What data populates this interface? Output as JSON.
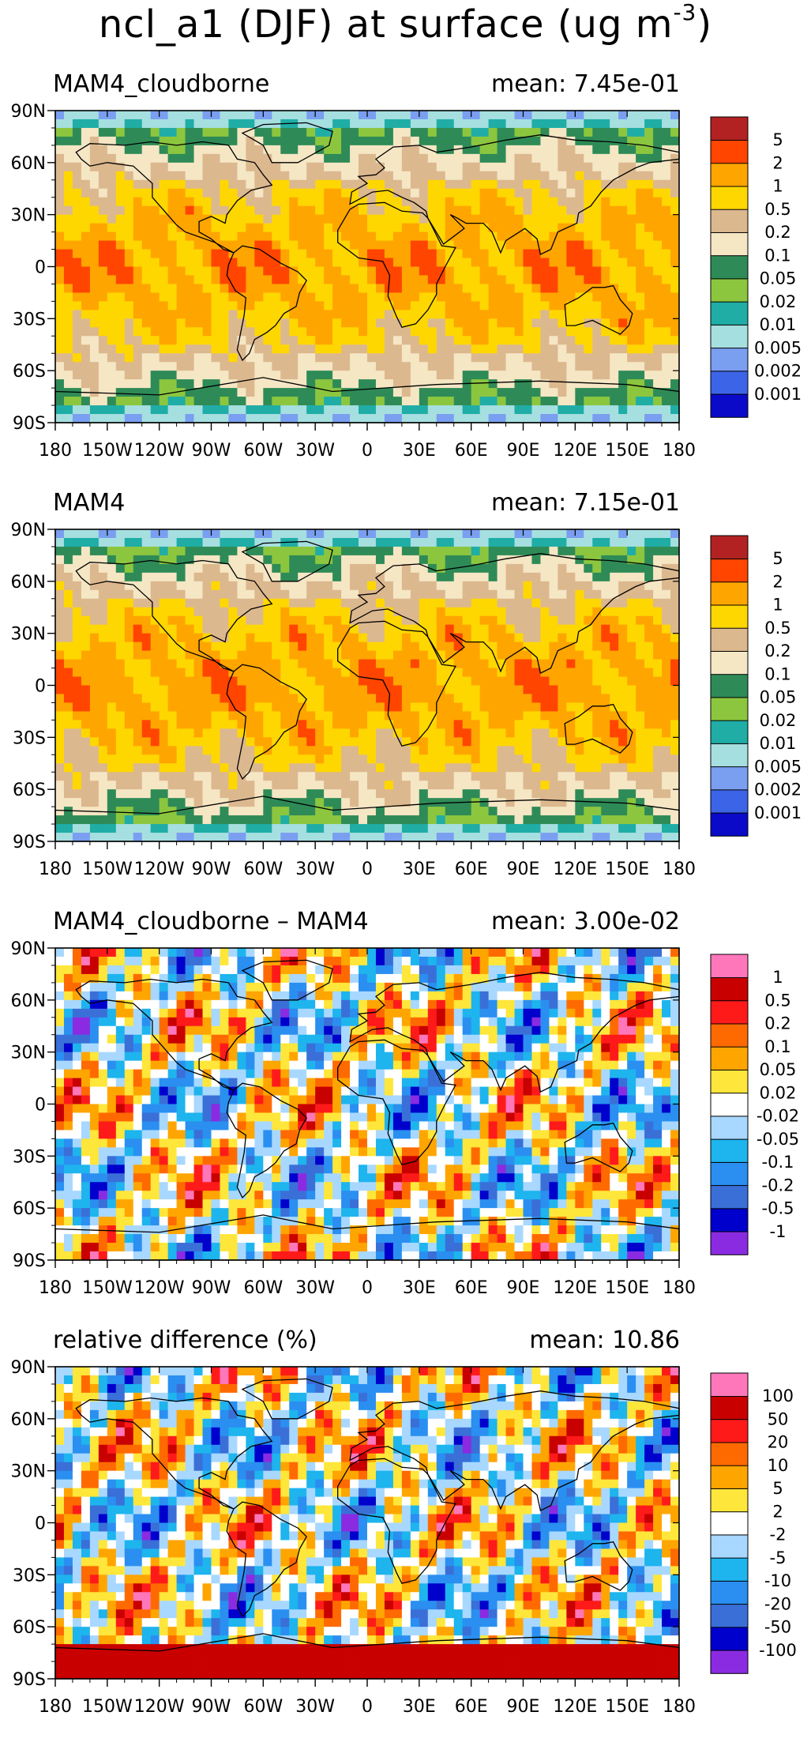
{
  "page": {
    "title_main": "ncl_a1 (DJF) at surface (ug m",
    "title_sup": "-3",
    "title_end": ")"
  },
  "axes": {
    "x_ticks": [
      "180",
      "150W",
      "120W",
      "90W",
      "60W",
      "30W",
      "0",
      "30E",
      "60E",
      "90E",
      "120E",
      "150E",
      "180"
    ],
    "y_ticks": [
      "90N",
      "60N",
      "30N",
      "0",
      "30S",
      "60S",
      "90S"
    ]
  },
  "chart_data": [
    {
      "type": "heatmap",
      "title": "MAM4_cloudborne",
      "mean_label": "mean:",
      "mean_value": "7.45e-01",
      "xlim": [
        -180,
        180
      ],
      "ylim": [
        -90,
        90
      ],
      "colorbar": {
        "levels": [
          "0.001",
          "0.002",
          "0.005",
          "0.01",
          "0.02",
          "0.05",
          "0.1",
          "0.2",
          "0.5",
          "1",
          "2",
          "5"
        ],
        "colors": [
          "#0a0ac8",
          "#3c64e6",
          "#7a9ef0",
          "#a6dfe0",
          "#1fada6",
          "#8cc63f",
          "#2e8b57",
          "#f5e6c4",
          "#dcb88f",
          "#ffd700",
          "#ffa500",
          "#ff4500",
          "#b22222"
        ]
      }
    },
    {
      "type": "heatmap",
      "title": "MAM4",
      "mean_label": "mean:",
      "mean_value": "7.15e-01",
      "xlim": [
        -180,
        180
      ],
      "ylim": [
        -90,
        90
      ],
      "colorbar": {
        "levels": [
          "0.001",
          "0.002",
          "0.005",
          "0.01",
          "0.02",
          "0.05",
          "0.1",
          "0.2",
          "0.5",
          "1",
          "2",
          "5"
        ],
        "colors": [
          "#0a0ac8",
          "#3c64e6",
          "#7a9ef0",
          "#a6dfe0",
          "#1fada6",
          "#8cc63f",
          "#2e8b57",
          "#f5e6c4",
          "#dcb88f",
          "#ffd700",
          "#ffa500",
          "#ff4500",
          "#b22222"
        ]
      }
    },
    {
      "type": "heatmap",
      "title": "MAM4_cloudborne – MAM4",
      "mean_label": "mean:",
      "mean_value": "3.00e-02",
      "xlim": [
        -180,
        180
      ],
      "ylim": [
        -90,
        90
      ],
      "colorbar": {
        "levels": [
          "-1",
          "-0.5",
          "-0.2",
          "-0.1",
          "-0.05",
          "-0.02",
          "0.02",
          "0.05",
          "0.1",
          "0.2",
          "0.5",
          "1"
        ],
        "colors": [
          "#8a2be2",
          "#0000cd",
          "#3a6fd8",
          "#2a8ff0",
          "#1eb4ee",
          "#a8d8ff",
          "#ffffff",
          "#ffe63a",
          "#ffa500",
          "#ff6a00",
          "#ff1a1a",
          "#c80000",
          "#ff77bb"
        ]
      }
    },
    {
      "type": "heatmap",
      "title": "relative difference (%)",
      "mean_label": "mean:",
      "mean_value": "10.86",
      "xlim": [
        -180,
        180
      ],
      "ylim": [
        -90,
        90
      ],
      "colorbar": {
        "levels": [
          "-100",
          "-50",
          "-20",
          "-10",
          "-5",
          "-2",
          "2",
          "5",
          "10",
          "20",
          "50",
          "100"
        ],
        "colors": [
          "#8a2be2",
          "#0000cd",
          "#3a6fd8",
          "#2a8ff0",
          "#1eb4ee",
          "#a8d8ff",
          "#ffffff",
          "#ffe63a",
          "#ffa500",
          "#ff6a00",
          "#ff1a1a",
          "#c80000",
          "#ff77bb"
        ]
      }
    }
  ]
}
